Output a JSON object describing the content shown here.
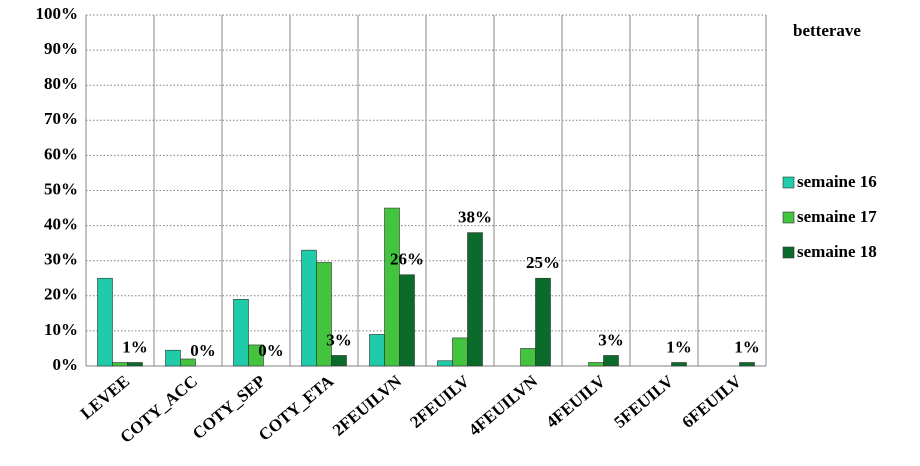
{
  "chart_data": {
    "type": "bar",
    "title": "betterave",
    "categories": [
      "LEVEE",
      "COTY_ACC",
      "COTY_SEP",
      "COTY_ETA",
      "2FEUILVN",
      "2FEUILV",
      "4FEUILVN",
      "4FEUILV",
      "5FEUILV",
      "6FEUILV"
    ],
    "series": [
      {
        "name": "semaine 16",
        "color": "#1fcba8",
        "values": [
          25,
          4.5,
          19,
          33,
          9,
          1.5,
          0,
          0,
          0,
          0
        ]
      },
      {
        "name": "semaine 17",
        "color": "#43c43f",
        "values": [
          1,
          2,
          6,
          29.5,
          45,
          8,
          5,
          1,
          0,
          0
        ]
      },
      {
        "name": "semaine 18",
        "color": "#0b6b2b",
        "values": [
          1,
          0,
          0,
          3,
          26,
          38,
          25,
          3,
          1,
          1
        ],
        "value_labels": [
          "1%",
          "0%",
          "0%",
          "3%",
          "26%",
          "38%",
          "25%",
          "3%",
          "1%",
          "1%"
        ]
      }
    ],
    "ylim": [
      0,
      100
    ],
    "yticks": [
      {
        "value": 0,
        "label": "0%"
      },
      {
        "value": 10,
        "label": "10%"
      },
      {
        "value": 20,
        "label": "20%"
      },
      {
        "value": 30,
        "label": "30%"
      },
      {
        "value": 40,
        "label": "40%"
      },
      {
        "value": 50,
        "label": "50%"
      },
      {
        "value": 60,
        "label": "60%"
      },
      {
        "value": 70,
        "label": "70%"
      },
      {
        "value": 80,
        "label": "80%"
      },
      {
        "value": 90,
        "label": "90%"
      },
      {
        "value": 100,
        "label": "100%"
      }
    ],
    "grid": true,
    "legend": "right"
  }
}
